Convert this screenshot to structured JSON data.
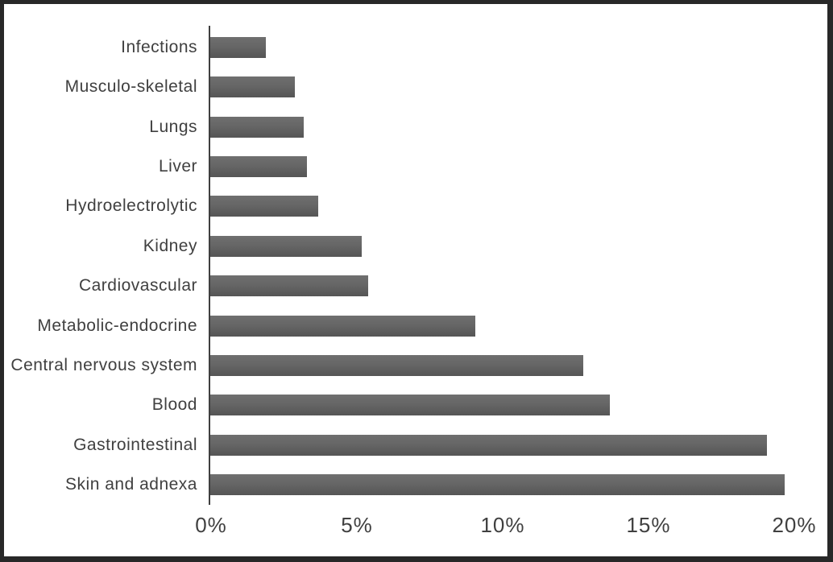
{
  "chart_data": {
    "type": "bar",
    "orientation": "horizontal",
    "title": "",
    "xlabel": "",
    "ylabel": "",
    "categories": [
      "Infections",
      "Musculo-skeletal",
      "Lungs",
      "Liver",
      "Hydroelectrolytic",
      "Kidney",
      "Cardiovascular",
      "Metabolic-endocrine",
      "Central nervous system",
      "Blood",
      "Gastrointestinal",
      "Skin and adnexa"
    ],
    "values": [
      1.9,
      2.9,
      3.2,
      3.3,
      3.7,
      5.2,
      5.4,
      9.1,
      12.8,
      13.7,
      19.1,
      19.7
    ],
    "value_unit": "%",
    "x_ticks": [
      "0%",
      "5%",
      "10%",
      "15%",
      "20%"
    ],
    "xlim": [
      0,
      20
    ],
    "grid": false,
    "legend": false,
    "colors": {
      "bar_top": "#6f6f6f",
      "bar_mid": "#666666",
      "bar_bottom": "#555555",
      "axis": "#3f3f3f",
      "text": "#404040",
      "frame_border": "#282828",
      "background": "#ffffff"
    }
  }
}
